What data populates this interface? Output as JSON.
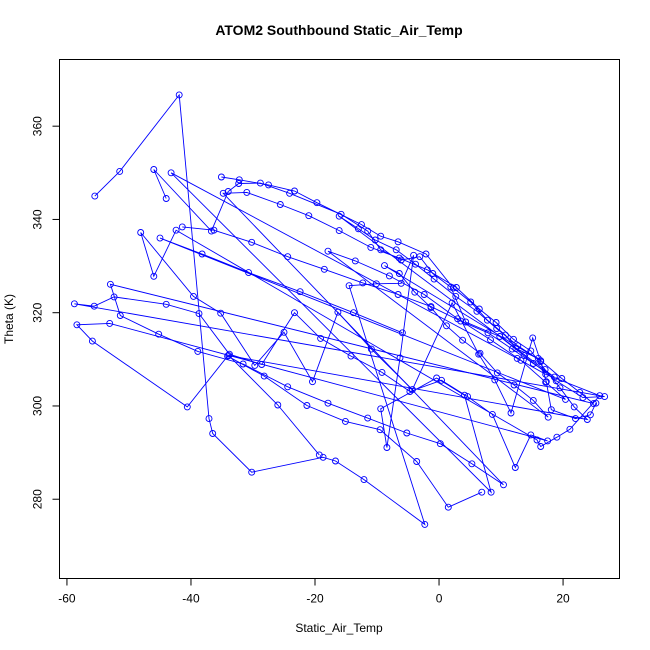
{
  "chart_data": {
    "type": "line",
    "title": "ATOM2 Southbound Static_Air_Temp",
    "xlabel": "Static_Air_Temp",
    "ylabel": "Theta (K)",
    "xlim": [
      -61.2,
      29.1
    ],
    "ylim": [
      263.0,
      374.3
    ],
    "xticks": [
      -60,
      -40,
      -20,
      0,
      20
    ],
    "yticks": [
      280,
      300,
      320,
      340,
      360
    ],
    "color": "#0000ff",
    "marker": "open-circle",
    "series": [
      {
        "points": [
          [
            -55.5,
            345.0
          ],
          [
            -51.5,
            350.3
          ],
          [
            -41.9,
            366.7
          ],
          [
            -37.1,
            297.3
          ],
          [
            -36.5,
            294.1
          ],
          [
            -30.2,
            285.8
          ],
          [
            -18.7,
            289.0
          ],
          [
            -16.7,
            288.2
          ],
          [
            -12.1,
            284.2
          ],
          [
            -2.3,
            274.6
          ],
          [
            -14.5,
            325.8
          ],
          [
            -10.1,
            326.2
          ],
          [
            -6.1,
            326.3
          ],
          [
            -4.1,
            332.3
          ],
          [
            -6.3,
            310.3
          ],
          [
            -8.4,
            291.1
          ],
          [
            -9.4,
            299.4
          ],
          [
            -0.4,
            306.0
          ],
          [
            4.1,
            302.3
          ],
          [
            8.4,
            281.5
          ],
          [
            -43.2,
            350.0
          ],
          [
            12.6,
            310.2
          ],
          [
            17.2,
            306.8
          ],
          [
            25.9,
            302.2
          ],
          [
            21.1,
            295.0
          ],
          [
            19.0,
            293.3
          ],
          [
            16.4,
            291.3
          ],
          [
            15.8,
            292.7
          ],
          [
            -42.4,
            337.7
          ],
          [
            -46.0,
            327.8
          ],
          [
            -48.1,
            337.2
          ],
          [
            -39.6,
            323.5
          ],
          [
            -35.2,
            319.9
          ],
          [
            -29.7,
            308.7
          ],
          [
            -25.0,
            315.8
          ],
          [
            -20.4,
            305.2
          ],
          [
            -16.3,
            320.1
          ],
          [
            -10.9,
            312.2
          ],
          [
            -4.3,
            303.5
          ],
          [
            2.1,
            322.1
          ],
          [
            6.4,
            311.1
          ],
          [
            9.0,
            305.6
          ],
          [
            11.6,
            298.5
          ],
          [
            15.1,
            314.6
          ],
          [
            16.4,
            309.5
          ],
          [
            17.3,
            305.2
          ],
          [
            18.1,
            299.2
          ],
          [
            22.0,
            297.3
          ],
          [
            24.4,
            298.1
          ],
          [
            25.3,
            300.6
          ]
        ]
      },
      {
        "points": [
          [
            -44.0,
            344.5
          ],
          [
            -46.0,
            350.7
          ],
          [
            -36.7,
            337.5
          ],
          [
            -34.0,
            346.0
          ],
          [
            -32.3,
            347.7
          ],
          [
            -28.8,
            347.8
          ],
          [
            -24.1,
            345.6
          ],
          [
            -15.8,
            341.1
          ],
          [
            -11.5,
            337.5
          ],
          [
            -9.4,
            333.5
          ],
          [
            -6.1,
            331.3
          ],
          [
            -3.1,
            332.0
          ],
          [
            -1.0,
            328.4
          ],
          [
            1.9,
            325.5
          ],
          [
            4.3,
            318.0
          ],
          [
            9.8,
            314.9
          ],
          [
            13.7,
            310.8
          ],
          [
            18.9,
            305.4
          ],
          [
            23.2,
            301.8
          ],
          [
            26.7,
            302.0
          ],
          [
            -58.8,
            321.9
          ],
          [
            -55.6,
            321.4
          ],
          [
            -52.4,
            323.4
          ],
          [
            -44.0,
            321.8
          ],
          [
            -38.7,
            319.8
          ],
          [
            -33.8,
            311.1
          ],
          [
            -28.6,
            308.9
          ],
          [
            -23.3,
            320.0
          ],
          [
            -19.1,
            314.5
          ],
          [
            -14.2,
            310.7
          ],
          [
            -9.2,
            307.2
          ],
          [
            -4.7,
            303.1
          ],
          [
            0.4,
            305.5
          ],
          [
            4.6,
            302.0
          ],
          [
            8.6,
            298.2
          ],
          [
            12.3,
            286.8
          ],
          [
            14.8,
            293.8
          ],
          [
            17.5,
            292.5
          ],
          [
            -53.1,
            317.7
          ],
          [
            -58.4,
            317.4
          ],
          [
            -55.9,
            313.9
          ],
          [
            -40.6,
            299.8
          ],
          [
            -34.1,
            310.7
          ],
          [
            -28.2,
            306.4
          ],
          [
            -21.3,
            300.1
          ],
          [
            -15.1,
            296.7
          ],
          [
            -9.5,
            294.9
          ],
          [
            -3.6,
            288.1
          ],
          [
            1.5,
            278.3
          ],
          [
            6.9,
            281.5
          ]
        ]
      },
      {
        "points": [
          [
            -35.1,
            349.1
          ],
          [
            -32.2,
            348.5
          ],
          [
            -27.5,
            347.4
          ],
          [
            -23.3,
            346.1
          ],
          [
            -19.7,
            343.6
          ],
          [
            -12.5,
            338.9
          ],
          [
            -9.4,
            336.4
          ],
          [
            -6.6,
            335.2
          ],
          [
            -2.1,
            332.6
          ],
          [
            2.3,
            325.3
          ],
          [
            5.1,
            322.3
          ],
          [
            7.8,
            318.4
          ],
          [
            10.7,
            315.2
          ],
          [
            12.4,
            312.3
          ],
          [
            16.0,
            310.2
          ],
          [
            19.8,
            305.9
          ],
          [
            22.7,
            302.9
          ],
          [
            24.9,
            300.5
          ],
          [
            -53.0,
            326.1
          ],
          [
            -51.4,
            319.4
          ],
          [
            -45.2,
            315.4
          ],
          [
            -38.9,
            311.7
          ],
          [
            -31.6,
            309.0
          ],
          [
            -24.4,
            304.1
          ],
          [
            -17.9,
            300.6
          ],
          [
            -11.5,
            297.4
          ],
          [
            -5.2,
            294.2
          ],
          [
            0.2,
            291.9
          ],
          [
            5.3,
            287.6
          ],
          [
            10.4,
            283.1
          ],
          [
            -34.8,
            345.6
          ],
          [
            -31.0,
            345.8
          ],
          [
            -25.6,
            343.2
          ],
          [
            -21.0,
            340.8
          ],
          [
            -16.1,
            337.6
          ],
          [
            -11.0,
            334.0
          ],
          [
            -6.4,
            331.7
          ],
          [
            -1.9,
            329.2
          ],
          [
            2.8,
            325.4
          ],
          [
            6.5,
            320.8
          ],
          [
            9.2,
            317.9
          ],
          [
            12.0,
            314.3
          ],
          [
            14.8,
            311.8
          ],
          [
            17.1,
            307.8
          ],
          [
            19.5,
            303.9
          ],
          [
            21.8,
            299.8
          ],
          [
            23.9,
            297.1
          ],
          [
            -33.9,
            310.8
          ],
          [
            -26.0,
            300.2
          ],
          [
            -19.3,
            289.5
          ]
        ]
      },
      {
        "points": [
          [
            -41.4,
            338.4
          ],
          [
            -36.3,
            337.7
          ],
          [
            -30.2,
            335.1
          ],
          [
            -24.4,
            332.0
          ],
          [
            -18.5,
            329.3
          ],
          [
            -12.3,
            326.4
          ],
          [
            -6.6,
            323.9
          ],
          [
            -1.3,
            321.3
          ],
          [
            3.5,
            318.2
          ],
          [
            7.9,
            315.7
          ],
          [
            11.8,
            312.2
          ],
          [
            15.2,
            309.1
          ],
          [
            18.6,
            306.2
          ],
          [
            -16.1,
            340.7
          ],
          [
            -13.0,
            338.0
          ],
          [
            -10.3,
            335.6
          ],
          [
            -6.9,
            333.5
          ],
          [
            -3.8,
            330.4
          ],
          [
            -0.8,
            327.2
          ],
          [
            2.7,
            323.5
          ],
          [
            6.1,
            320.3
          ],
          [
            9.3,
            316.6
          ],
          [
            12.7,
            312.9
          ],
          [
            16.4,
            309.7
          ],
          [
            -8.8,
            330.1
          ],
          [
            -6.4,
            328.4
          ],
          [
            -3.9,
            324.4
          ],
          [
            -1.3,
            321.1
          ],
          [
            1.2,
            317.2
          ],
          [
            3.8,
            314.1
          ],
          [
            6.6,
            311.3
          ],
          [
            9.4,
            307.1
          ],
          [
            12.1,
            304.5
          ],
          [
            15.2,
            301.2
          ],
          [
            17.6,
            297.6
          ],
          [
            -17.9,
            333.2
          ],
          [
            -13.5,
            331.1
          ],
          [
            -8.0,
            327.9
          ],
          [
            -2.4,
            323.9
          ],
          [
            3.0,
            318.7
          ],
          [
            8.3,
            314.2
          ],
          [
            13.2,
            309.8
          ],
          [
            17.2,
            305.1
          ],
          [
            20.4,
            301.4
          ],
          [
            -45.0,
            336.0
          ],
          [
            -38.2,
            332.6
          ],
          [
            -30.7,
            328.6
          ],
          [
            -22.4,
            324.5
          ],
          [
            -13.8,
            320.0
          ],
          [
            -5.9,
            315.7
          ]
        ]
      }
    ]
  }
}
